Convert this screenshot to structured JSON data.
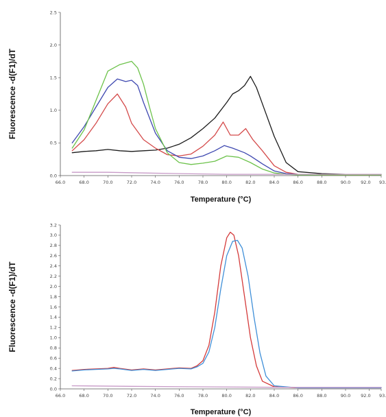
{
  "chart_data": [
    {
      "type": "line",
      "xlabel": "Temperature (°C)",
      "ylabel": "Fluorescence -d(F1)/dT",
      "xlim": [
        66.0,
        93.0
      ],
      "ylim": [
        0.0,
        2.5
      ],
      "x_ticks": [
        "66.0",
        "68.0",
        "70.0",
        "72.0",
        "74.0",
        "76.0",
        "78.0",
        "80.0",
        "82.0",
        "84.0",
        "86.0",
        "88.0",
        "90.0",
        "92.0",
        "93.0"
      ],
      "y_ticks": [
        "0.0",
        "0.5",
        "1.0",
        "1.5",
        "2.0",
        "2.5"
      ],
      "grid": false,
      "series": [
        {
          "color": "#1a1a1a",
          "x": [
            67,
            68,
            69,
            70,
            71,
            72,
            73,
            74,
            75,
            76,
            77,
            78,
            79,
            80,
            80.5,
            81,
            81.5,
            82,
            82.5,
            83,
            84,
            85,
            86,
            88,
            90,
            93
          ],
          "y": [
            0.35,
            0.37,
            0.38,
            0.4,
            0.38,
            0.37,
            0.38,
            0.39,
            0.42,
            0.48,
            0.58,
            0.72,
            0.88,
            1.12,
            1.25,
            1.3,
            1.38,
            1.52,
            1.35,
            1.1,
            0.6,
            0.2,
            0.06,
            0.03,
            0.02,
            0.02
          ]
        },
        {
          "color": "#d44a4a",
          "x": [
            67,
            68,
            69,
            70,
            70.8,
            71.5,
            72,
            73,
            74,
            75,
            76,
            77,
            78,
            79,
            79.7,
            80.3,
            81,
            81.6,
            82.2,
            83,
            84,
            85,
            86,
            88,
            93
          ],
          "y": [
            0.38,
            0.55,
            0.8,
            1.1,
            1.25,
            1.05,
            0.8,
            0.55,
            0.42,
            0.32,
            0.3,
            0.33,
            0.45,
            0.62,
            0.82,
            0.62,
            0.62,
            0.72,
            0.55,
            0.38,
            0.15,
            0.05,
            0.02,
            0.01,
            0.01
          ]
        },
        {
          "color": "#3e48b0",
          "x": [
            67,
            68,
            69,
            70,
            70.8,
            71.5,
            72,
            72.5,
            73,
            74,
            75,
            76,
            77,
            78,
            79,
            79.8,
            80.5,
            81.5,
            82,
            83,
            84,
            85,
            86,
            93
          ],
          "y": [
            0.5,
            0.75,
            1.05,
            1.35,
            1.48,
            1.44,
            1.46,
            1.38,
            1.12,
            0.65,
            0.38,
            0.28,
            0.26,
            0.3,
            0.38,
            0.46,
            0.42,
            0.35,
            0.3,
            0.18,
            0.07,
            0.03,
            0.02,
            0.01
          ]
        },
        {
          "color": "#6cc24a",
          "x": [
            67,
            68,
            69,
            70,
            71,
            72,
            72.5,
            73,
            73.5,
            74,
            75,
            76,
            77,
            78,
            79,
            80,
            81,
            82,
            83,
            84,
            85,
            86,
            93
          ],
          "y": [
            0.42,
            0.7,
            1.15,
            1.6,
            1.7,
            1.75,
            1.65,
            1.4,
            1.05,
            0.72,
            0.35,
            0.2,
            0.17,
            0.19,
            0.22,
            0.3,
            0.28,
            0.2,
            0.1,
            0.04,
            0.02,
            0.01,
            0.01
          ]
        },
        {
          "color": "#c79ac7",
          "x": [
            67,
            70,
            73,
            76,
            80,
            85,
            93
          ],
          "y": [
            0.05,
            0.05,
            0.04,
            0.03,
            0.02,
            0.02,
            0.02
          ]
        }
      ]
    },
    {
      "type": "line",
      "xlabel": "Temperature (°C)",
      "ylabel": "Fluorescence -d(F1)/dT",
      "xlim": [
        66.0,
        93.0
      ],
      "ylim": [
        0.0,
        3.2
      ],
      "x_ticks": [
        "66.0",
        "68.0",
        "70.0",
        "72.0",
        "74.0",
        "76.0",
        "78.0",
        "80.0",
        "82.0",
        "84.0",
        "86.0",
        "88.0",
        "90.0",
        "92.0",
        "93.0"
      ],
      "y_ticks": [
        "0.0",
        "0.2",
        "0.4",
        "0.6",
        "0.8",
        "1.0",
        "1.2",
        "1.4",
        "1.6",
        "1.8",
        "2.0",
        "2.2",
        "2.4",
        "2.6",
        "2.8",
        "3.0",
        "3.2"
      ],
      "grid": false,
      "series": [
        {
          "color": "#d43a3a",
          "x": [
            67,
            68,
            69,
            70,
            70.5,
            71,
            72,
            73,
            74,
            75,
            76,
            77,
            77.5,
            78,
            78.5,
            79,
            79.5,
            80,
            80.3,
            80.6,
            81,
            81.5,
            82,
            82.5,
            83,
            84,
            86,
            88,
            93
          ],
          "y": [
            0.36,
            0.38,
            0.39,
            0.4,
            0.42,
            0.4,
            0.37,
            0.39,
            0.37,
            0.39,
            0.41,
            0.4,
            0.45,
            0.55,
            0.85,
            1.5,
            2.4,
            2.95,
            3.06,
            3.0,
            2.6,
            1.8,
            1.0,
            0.45,
            0.15,
            0.04,
            0.02,
            0.02,
            0.02
          ]
        },
        {
          "color": "#3f8fd8",
          "x": [
            67,
            68,
            69,
            70,
            70.5,
            71,
            72,
            73,
            74,
            75,
            76,
            77,
            77.5,
            78,
            78.5,
            79,
            79.5,
            80,
            80.5,
            80.9,
            81.3,
            81.8,
            82.3,
            82.8,
            83.3,
            84,
            86,
            88,
            93
          ],
          "y": [
            0.35,
            0.37,
            0.38,
            0.39,
            0.4,
            0.39,
            0.36,
            0.38,
            0.36,
            0.38,
            0.4,
            0.39,
            0.43,
            0.5,
            0.72,
            1.2,
            1.95,
            2.6,
            2.88,
            2.9,
            2.75,
            2.2,
            1.4,
            0.7,
            0.25,
            0.06,
            0.02,
            0.02,
            0.02
          ]
        },
        {
          "color": "#c79ac7",
          "x": [
            67,
            72,
            78,
            85,
            93
          ],
          "y": [
            0.06,
            0.05,
            0.04,
            0.03,
            0.03
          ]
        }
      ]
    }
  ]
}
